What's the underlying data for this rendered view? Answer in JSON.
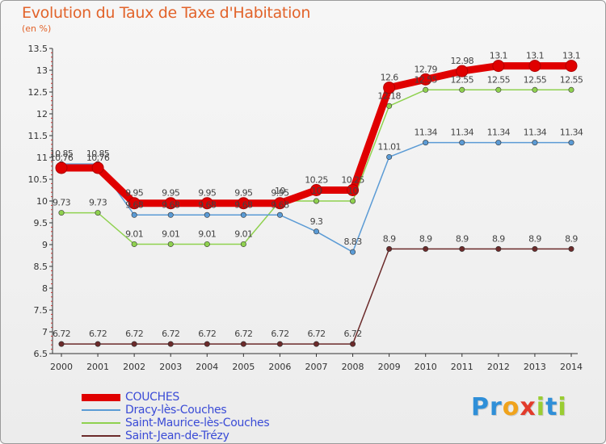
{
  "title": "Evolution du Taux de Taxe d'Habitation",
  "unit_label": "(en %)",
  "logo": {
    "letters": [
      "P",
      "r",
      "o",
      "x",
      "i",
      "t",
      "i"
    ],
    "colors": [
      "#2f8fd8",
      "#2f8fd8",
      "#f0a31c",
      "#e23b2b",
      "#9acd32",
      "#2f8fd8",
      "#9acd32"
    ]
  },
  "chart_data": {
    "type": "line",
    "x": [
      "2000",
      "2001",
      "2002",
      "2003",
      "2004",
      "2005",
      "2006",
      "2007",
      "2008",
      "2009",
      "2010",
      "2011",
      "2012",
      "2013",
      "2014"
    ],
    "ylim": [
      6.5,
      13.5
    ],
    "yticks": [
      "6.5",
      "7",
      "7.5",
      "8",
      "8.5",
      "9",
      "9.5",
      "10",
      "10.5",
      "11",
      "11.5",
      "12",
      "12.5",
      "13",
      "13.5"
    ],
    "grid": false,
    "legend_position": "bottom-left",
    "series": [
      {
        "name": "COUCHES",
        "color": "#e00000",
        "values": [
          10.76,
          10.76,
          9.95,
          9.95,
          9.95,
          9.95,
          9.95,
          10.25,
          10.25,
          12.6,
          12.79,
          12.98,
          13.1,
          13.1,
          13.1
        ],
        "labels": [
          "10.76",
          "10.76",
          "9.95",
          "9.95",
          "9.95",
          "9.95",
          "9.95",
          "10.25",
          "10.25",
          "12.6",
          "12.79",
          "12.98",
          "13.1",
          "13.1",
          "13.1"
        ]
      },
      {
        "name": "Dracy-lès-Couches",
        "color": "#5b9bd5",
        "values": [
          10.85,
          10.85,
          9.68,
          9.68,
          9.68,
          9.68,
          9.68,
          9.3,
          8.83,
          11.01,
          11.34,
          11.34,
          11.34,
          11.34,
          11.34
        ],
        "labels": [
          "10.85",
          "10.85",
          "9.68",
          "9.68",
          "9.68",
          "9.68",
          "9.68",
          "9.3",
          "8.83",
          "11.01",
          "11.34",
          "11.34",
          "11.34",
          "11.34",
          "11.34"
        ]
      },
      {
        "name": "Saint-Maurice-lès-Couches",
        "color": "#8fd14f",
        "values": [
          9.73,
          9.73,
          9.01,
          9.01,
          9.01,
          9.01,
          10.0,
          10.0,
          10.0,
          12.18,
          12.55,
          12.55,
          12.55,
          12.55,
          12.55
        ],
        "labels": [
          "9.73",
          "9.73",
          "9.01",
          "9.01",
          "9.01",
          "9.01",
          "10",
          "10",
          "10",
          "12.18",
          "12.55",
          "12.55",
          "12.55",
          "12.55",
          "12.55"
        ]
      },
      {
        "name": "Saint-Jean-de-Trézy",
        "color": "#6b2a2a",
        "values": [
          6.72,
          6.72,
          6.72,
          6.72,
          6.72,
          6.72,
          6.72,
          6.72,
          6.72,
          8.9,
          8.9,
          8.9,
          8.9,
          8.9,
          8.9
        ],
        "labels": [
          "6.72",
          "6.72",
          "6.72",
          "6.72",
          "6.72",
          "6.72",
          "6.72",
          "6.72",
          "6.72",
          "8.9",
          "8.9",
          "8.9",
          "8.9",
          "8.9",
          "8.9"
        ]
      }
    ]
  }
}
